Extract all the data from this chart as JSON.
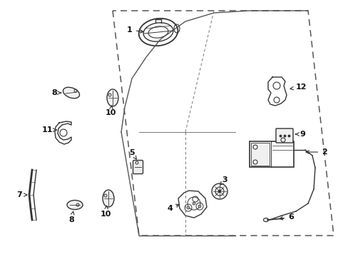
{
  "background_color": "#ffffff",
  "figure_size": [
    4.89,
    3.6
  ],
  "dpi": 100,
  "line_color": "#333333",
  "font_size": 8.0
}
